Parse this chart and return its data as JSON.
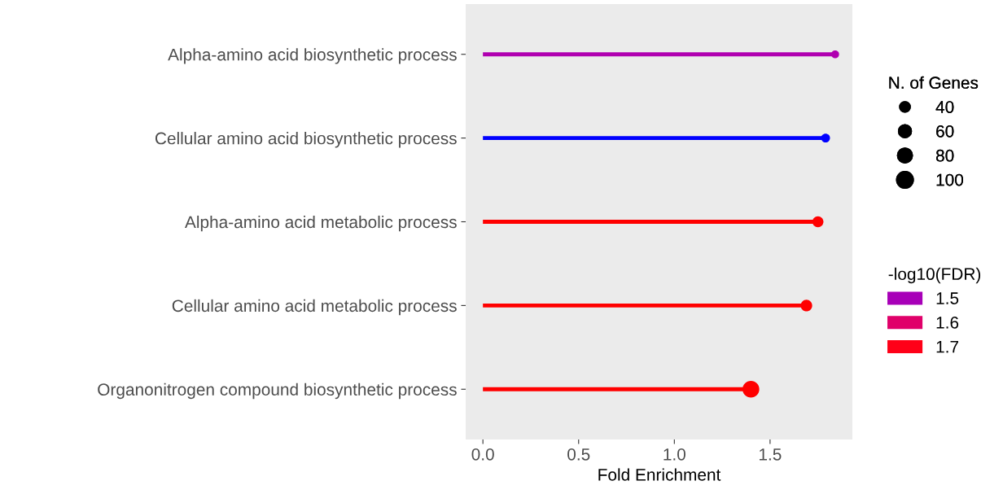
{
  "chart_data": {
    "type": "lollipop",
    "orientation": "horizontal",
    "categories": [
      "Alpha-amino acid biosynthetic process",
      "Cellular amino acid biosynthetic process",
      "Alpha-amino acid metabolic process",
      "Cellular amino acid metabolic process",
      "Organonitrogen compound biosynthetic process"
    ],
    "series": [
      {
        "values": [
          1.84,
          1.79,
          1.75,
          1.69,
          1.4
        ],
        "colors": [
          "#b000b0",
          "#0000ff",
          "#ff0000",
          "#ff0000",
          "#ff0000"
        ],
        "sizes": [
          22,
          28,
          43,
          47,
          100
        ]
      },
      {
        "name": "1.5",
        "color": "#a800b8",
        "values": [
          null,
          null,
          null,
          null,
          null
        ]
      },
      {
        "name": "1.6",
        "color": "#e0006a",
        "values": [
          null,
          null,
          null,
          null,
          null
        ]
      },
      {
        "name": "1.7",
        "color": "#ff0018",
        "values": [
          null,
          null,
          null,
          null,
          null
        ]
      }
    ],
    "size_legend": [
      40,
      60,
      80,
      100
    ],
    "legend_title": "N. of Genes",
    "clabel": "-log10(FDR)",
    "xlabel": "Fold Enrichment",
    "xlim": [
      -0.09,
      1.93
    ],
    "xticks": [
      {
        "value": 0,
        "label": "0.0"
      },
      0.5,
      {
        "value": 1,
        "label": "1.0"
      },
      1.5
    ],
    "grid": false,
    "legend": "right",
    "marker": "circle"
  }
}
